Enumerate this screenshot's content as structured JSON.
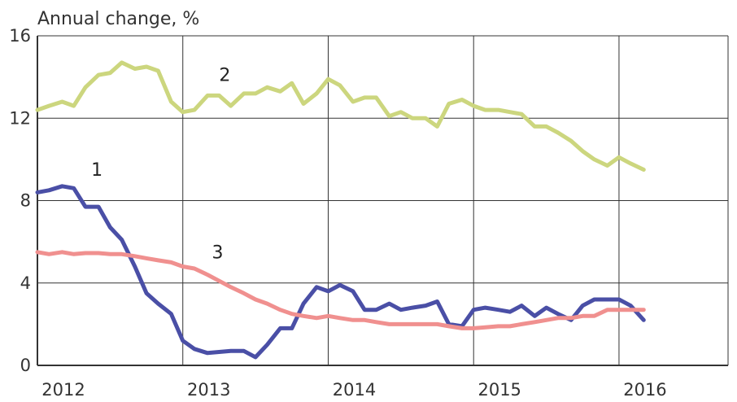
{
  "chart_data": {
    "type": "line",
    "ylabel": "Annual change, %",
    "ylim": [
      0,
      16
    ],
    "yticks": [
      "0",
      "4",
      "8",
      "12",
      "16"
    ],
    "xlim": [
      2012.0,
      2016.75
    ],
    "xticks": [
      "2012",
      "2013",
      "2014",
      "2015",
      "2016"
    ],
    "grid": true,
    "series": [
      {
        "name": "1",
        "color": "#4a4fa6",
        "label_pos": [
          2012.37,
          9.2
        ],
        "points": [
          [
            2012.0,
            8.4
          ],
          [
            2012.08,
            8.5
          ],
          [
            2012.17,
            8.7
          ],
          [
            2012.25,
            8.6
          ],
          [
            2012.33,
            7.7
          ],
          [
            2012.42,
            7.7
          ],
          [
            2012.5,
            6.7
          ],
          [
            2012.58,
            6.1
          ],
          [
            2012.67,
            4.8
          ],
          [
            2012.75,
            3.5
          ],
          [
            2012.83,
            3.0
          ],
          [
            2012.92,
            2.5
          ],
          [
            2013.0,
            1.2
          ],
          [
            2013.08,
            0.8
          ],
          [
            2013.17,
            0.6
          ],
          [
            2013.25,
            0.65
          ],
          [
            2013.33,
            0.7
          ],
          [
            2013.42,
            0.7
          ],
          [
            2013.5,
            0.4
          ],
          [
            2013.58,
            1.0
          ],
          [
            2013.67,
            1.8
          ],
          [
            2013.75,
            1.8
          ],
          [
            2013.83,
            3.0
          ],
          [
            2013.92,
            3.8
          ],
          [
            2014.0,
            3.6
          ],
          [
            2014.08,
            3.9
          ],
          [
            2014.17,
            3.6
          ],
          [
            2014.25,
            2.7
          ],
          [
            2014.33,
            2.7
          ],
          [
            2014.42,
            3.0
          ],
          [
            2014.5,
            2.7
          ],
          [
            2014.58,
            2.8
          ],
          [
            2014.67,
            2.9
          ],
          [
            2014.75,
            3.1
          ],
          [
            2014.83,
            2.0
          ],
          [
            2014.92,
            1.9
          ],
          [
            2015.0,
            2.7
          ],
          [
            2015.08,
            2.8
          ],
          [
            2015.17,
            2.7
          ],
          [
            2015.25,
            2.6
          ],
          [
            2015.33,
            2.9
          ],
          [
            2015.42,
            2.4
          ],
          [
            2015.5,
            2.8
          ],
          [
            2015.58,
            2.5
          ],
          [
            2015.67,
            2.2
          ],
          [
            2015.75,
            2.9
          ],
          [
            2015.83,
            3.2
          ],
          [
            2015.92,
            3.2
          ],
          [
            2016.0,
            3.2
          ],
          [
            2016.08,
            2.9
          ],
          [
            2016.17,
            2.2
          ]
        ]
      },
      {
        "name": "2",
        "color": "#ccd67e",
        "label_pos": [
          2013.25,
          13.8
        ],
        "points": [
          [
            2012.0,
            12.4
          ],
          [
            2012.08,
            12.6
          ],
          [
            2012.17,
            12.8
          ],
          [
            2012.25,
            12.6
          ],
          [
            2012.33,
            13.5
          ],
          [
            2012.42,
            14.1
          ],
          [
            2012.5,
            14.2
          ],
          [
            2012.58,
            14.7
          ],
          [
            2012.67,
            14.4
          ],
          [
            2012.75,
            14.5
          ],
          [
            2012.83,
            14.3
          ],
          [
            2012.92,
            12.8
          ],
          [
            2013.0,
            12.3
          ],
          [
            2013.08,
            12.4
          ],
          [
            2013.17,
            13.1
          ],
          [
            2013.25,
            13.1
          ],
          [
            2013.33,
            12.6
          ],
          [
            2013.42,
            13.2
          ],
          [
            2013.5,
            13.2
          ],
          [
            2013.58,
            13.5
          ],
          [
            2013.67,
            13.3
          ],
          [
            2013.75,
            13.7
          ],
          [
            2013.83,
            12.7
          ],
          [
            2013.92,
            13.2
          ],
          [
            2014.0,
            13.9
          ],
          [
            2014.08,
            13.6
          ],
          [
            2014.17,
            12.8
          ],
          [
            2014.25,
            13.0
          ],
          [
            2014.33,
            13.0
          ],
          [
            2014.42,
            12.1
          ],
          [
            2014.5,
            12.3
          ],
          [
            2014.58,
            12.0
          ],
          [
            2014.67,
            12.0
          ],
          [
            2014.75,
            11.6
          ],
          [
            2014.83,
            12.7
          ],
          [
            2014.92,
            12.9
          ],
          [
            2015.0,
            12.6
          ],
          [
            2015.08,
            12.4
          ],
          [
            2015.17,
            12.4
          ],
          [
            2015.25,
            12.3
          ],
          [
            2015.33,
            12.2
          ],
          [
            2015.42,
            11.6
          ],
          [
            2015.5,
            11.6
          ],
          [
            2015.58,
            11.3
          ],
          [
            2015.67,
            10.9
          ],
          [
            2015.75,
            10.4
          ],
          [
            2015.83,
            10.0
          ],
          [
            2015.92,
            9.7
          ],
          [
            2016.0,
            10.1
          ],
          [
            2016.08,
            9.8
          ],
          [
            2016.17,
            9.5
          ]
        ]
      },
      {
        "name": "3",
        "color": "#f0908f",
        "label_pos": [
          2013.2,
          5.2
        ],
        "points": [
          [
            2012.0,
            5.5
          ],
          [
            2012.08,
            5.4
          ],
          [
            2012.17,
            5.5
          ],
          [
            2012.25,
            5.4
          ],
          [
            2012.33,
            5.45
          ],
          [
            2012.42,
            5.45
          ],
          [
            2012.5,
            5.4
          ],
          [
            2012.58,
            5.4
          ],
          [
            2012.67,
            5.3
          ],
          [
            2012.75,
            5.2
          ],
          [
            2012.83,
            5.1
          ],
          [
            2012.92,
            5.0
          ],
          [
            2013.0,
            4.8
          ],
          [
            2013.08,
            4.7
          ],
          [
            2013.17,
            4.4
          ],
          [
            2013.25,
            4.1
          ],
          [
            2013.33,
            3.8
          ],
          [
            2013.42,
            3.5
          ],
          [
            2013.5,
            3.2
          ],
          [
            2013.58,
            3.0
          ],
          [
            2013.67,
            2.7
          ],
          [
            2013.75,
            2.5
          ],
          [
            2013.83,
            2.4
          ],
          [
            2013.92,
            2.3
          ],
          [
            2014.0,
            2.4
          ],
          [
            2014.08,
            2.3
          ],
          [
            2014.17,
            2.2
          ],
          [
            2014.25,
            2.2
          ],
          [
            2014.33,
            2.1
          ],
          [
            2014.42,
            2.0
          ],
          [
            2014.5,
            2.0
          ],
          [
            2014.58,
            2.0
          ],
          [
            2014.67,
            2.0
          ],
          [
            2014.75,
            2.0
          ],
          [
            2014.83,
            1.9
          ],
          [
            2014.92,
            1.8
          ],
          [
            2015.0,
            1.8
          ],
          [
            2015.08,
            1.85
          ],
          [
            2015.17,
            1.9
          ],
          [
            2015.25,
            1.9
          ],
          [
            2015.33,
            2.0
          ],
          [
            2015.42,
            2.1
          ],
          [
            2015.5,
            2.2
          ],
          [
            2015.58,
            2.3
          ],
          [
            2015.67,
            2.3
          ],
          [
            2015.75,
            2.4
          ],
          [
            2015.83,
            2.4
          ],
          [
            2015.92,
            2.7
          ],
          [
            2016.0,
            2.7
          ],
          [
            2016.08,
            2.7
          ],
          [
            2016.17,
            2.7
          ]
        ]
      }
    ]
  }
}
